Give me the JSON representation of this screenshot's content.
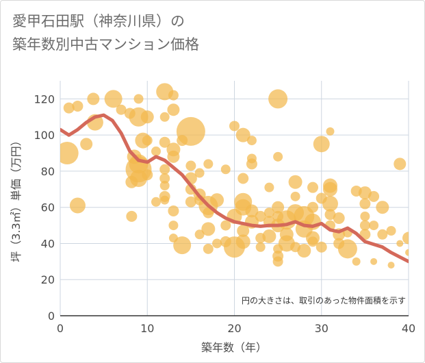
{
  "title_lines": [
    "愛甲石田駅（神奈川県）の",
    "築年数別中古マンション価格"
  ],
  "note": "円の大きさは、取引のあった物件面積を示す",
  "colors": {
    "bubble": "#f3b94d",
    "line": "#d4695a",
    "grid": "#cdd6e0",
    "axis": "#4a4a4a",
    "bg": "#ffffff"
  },
  "chart_data": {
    "type": "scatter",
    "xlabel": "築年数（年）",
    "ylabel": "坪（3.3㎡）単価（万円）",
    "xlim": [
      0,
      40
    ],
    "ylim": [
      0,
      130
    ],
    "x_ticks": [
      0,
      10,
      20,
      30,
      40
    ],
    "y_ticks": [
      0,
      20,
      40,
      60,
      80,
      100,
      120
    ],
    "grid": true,
    "bubbles": [
      [
        1,
        115,
        1.6
      ],
      [
        2,
        116,
        1.6
      ],
      [
        0.8,
        90,
        3.3
      ],
      [
        2,
        61,
        2.3
      ],
      [
        3,
        95,
        1.8
      ],
      [
        3.8,
        120,
        1.8
      ],
      [
        4,
        107,
        2.4
      ],
      [
        6.1,
        120,
        2.6
      ],
      [
        7,
        114,
        1.5
      ],
      [
        8,
        112,
        1.6
      ],
      [
        9,
        120,
        1.4
      ],
      [
        9,
        110,
        2.8
      ],
      [
        10,
        110,
        1.9
      ],
      [
        9.5,
        97,
        2.3
      ],
      [
        8.5,
        88,
        2.1
      ],
      [
        9,
        84,
        2.8
      ],
      [
        9,
        81,
        3.8
      ],
      [
        8.2,
        74,
        1.8
      ],
      [
        9,
        76,
        2.5
      ],
      [
        10,
        78,
        1.6
      ],
      [
        10,
        97,
        1.5
      ],
      [
        8.2,
        55,
        1.6
      ],
      [
        11,
        91,
        1.4
      ],
      [
        12,
        124,
        2.5
      ],
      [
        13,
        122,
        1.5
      ],
      [
        13,
        114,
        1.8
      ],
      [
        12,
        110,
        1.4
      ],
      [
        12,
        96,
        1.6
      ],
      [
        13,
        92,
        2.0
      ],
      [
        13,
        88,
        1.8
      ],
      [
        12,
        81,
        1.5
      ],
      [
        12,
        76,
        1.5
      ],
      [
        12,
        72,
        1.4
      ],
      [
        12,
        66,
        1.6
      ],
      [
        11,
        63,
        1.4
      ],
      [
        12,
        64,
        1.3
      ],
      [
        13,
        58,
        1.6
      ],
      [
        13,
        50,
        1.4
      ],
      [
        13,
        43,
        1.3
      ],
      [
        14,
        39,
        2.6
      ],
      [
        15,
        102,
        4.2
      ],
      [
        14,
        97,
        1.6
      ],
      [
        15,
        83,
        1.5
      ],
      [
        16,
        79,
        1.4
      ],
      [
        17,
        84,
        1.4
      ],
      [
        15,
        76,
        1.8
      ],
      [
        15,
        70,
        1.6
      ],
      [
        16,
        67,
        1.8
      ],
      [
        16,
        64,
        1.5
      ],
      [
        15,
        63,
        1.6
      ],
      [
        17,
        61,
        2.8
      ],
      [
        18,
        64,
        2.0
      ],
      [
        17,
        57,
        1.6
      ],
      [
        17,
        48,
        2.0
      ],
      [
        16,
        45,
        1.4
      ],
      [
        17,
        37,
        1.5
      ],
      [
        18,
        40,
        1.4
      ],
      [
        19,
        81,
        1.4
      ],
      [
        20,
        105,
        1.5
      ],
      [
        21,
        100,
        2.1
      ],
      [
        22,
        97,
        1.4
      ],
      [
        21,
        76,
        1.6
      ],
      [
        22,
        87,
        1.4
      ],
      [
        22,
        84,
        1.6
      ],
      [
        21,
        60,
        2.4
      ],
      [
        21,
        63,
        2.6
      ],
      [
        20,
        55,
        2.2
      ],
      [
        22,
        58,
        1.9
      ],
      [
        22,
        52,
        2.0
      ],
      [
        23,
        55,
        1.6
      ],
      [
        21,
        47,
        1.8
      ],
      [
        21,
        41,
        2.1
      ],
      [
        20,
        38,
        3.1
      ],
      [
        19,
        41,
        1.6
      ],
      [
        19,
        50,
        1.5
      ],
      [
        23,
        43,
        1.5
      ],
      [
        24,
        71,
        1.4
      ],
      [
        24,
        57,
        1.5
      ],
      [
        24,
        52,
        1.7
      ],
      [
        25,
        120,
        2.8
      ],
      [
        25,
        88,
        1.4
      ],
      [
        25,
        60,
        1.8
      ],
      [
        25,
        55,
        1.6
      ],
      [
        25,
        50,
        2.0
      ],
      [
        26,
        53,
        2.8
      ],
      [
        26,
        45,
        2.0
      ],
      [
        26,
        40,
        2.4
      ],
      [
        25,
        37,
        1.4
      ],
      [
        25,
        33,
        1.6
      ],
      [
        25,
        30,
        1.5
      ],
      [
        24,
        44,
        2.0
      ],
      [
        27,
        74,
        2.0
      ],
      [
        27,
        66,
        1.4
      ],
      [
        27,
        57,
        2.5
      ],
      [
        28,
        55,
        3.0
      ],
      [
        28,
        48,
        2.5
      ],
      [
        28,
        36,
        2.0
      ],
      [
        29,
        71,
        1.6
      ],
      [
        29,
        60,
        1.6
      ],
      [
        29,
        52,
        2.4
      ],
      [
        29,
        43,
        2.0
      ],
      [
        29,
        41,
        1.5
      ],
      [
        30,
        95,
        2.4
      ],
      [
        30,
        65,
        1.6
      ],
      [
        31,
        102,
        1.2
      ],
      [
        31,
        72,
        2.1
      ],
      [
        31,
        70,
        2.1
      ],
      [
        31,
        62,
        2.3
      ],
      [
        31,
        56,
        1.6
      ],
      [
        32,
        54,
        1.7
      ],
      [
        31,
        50,
        1.5
      ],
      [
        32,
        45,
        1.8
      ],
      [
        32,
        40,
        1.6
      ],
      [
        33,
        37,
        2.8
      ],
      [
        33,
        46,
        1.4
      ],
      [
        34,
        69,
        1.6
      ],
      [
        35,
        68,
        1.9
      ],
      [
        35,
        62,
        1.6
      ],
      [
        35,
        55,
        1.4
      ],
      [
        35,
        50,
        1.5
      ],
      [
        35,
        45,
        1.6
      ],
      [
        36,
        66,
        1.6
      ],
      [
        36,
        50,
        1.4
      ],
      [
        36,
        30,
        1.0
      ],
      [
        37,
        60,
        1.9
      ],
      [
        37,
        45,
        1.5
      ],
      [
        38,
        47,
        1.4
      ],
      [
        38,
        28,
        1.0
      ],
      [
        39,
        84,
        1.8
      ],
      [
        40,
        43,
        1.8
      ],
      [
        39,
        40,
        1.0
      ],
      [
        40,
        35,
        1.0
      ],
      [
        34,
        30,
        1.2
      ],
      [
        30,
        38,
        1.6
      ],
      [
        27,
        38,
        1.5
      ],
      [
        23,
        38,
        1.4
      ]
    ],
    "trend": {
      "x": [
        0,
        1,
        2,
        3,
        4,
        5,
        6,
        7,
        8,
        9,
        10,
        11,
        12,
        13,
        14,
        15,
        16,
        17,
        18,
        19,
        20,
        21,
        22,
        23,
        24,
        25,
        26,
        27,
        28,
        29,
        30,
        31,
        32,
        33,
        34,
        35,
        36,
        37,
        38,
        39,
        40
      ],
      "y": [
        103,
        100,
        103,
        107,
        110,
        111,
        108,
        101,
        91,
        86,
        85,
        88,
        86,
        82,
        78,
        72,
        66,
        61,
        57,
        54,
        52,
        51,
        50,
        49.5,
        50,
        50,
        50.5,
        52,
        50,
        49.5,
        51,
        47.5,
        46.5,
        48.5,
        45.5,
        41,
        39.5,
        38,
        35,
        32.5,
        30
      ]
    }
  }
}
